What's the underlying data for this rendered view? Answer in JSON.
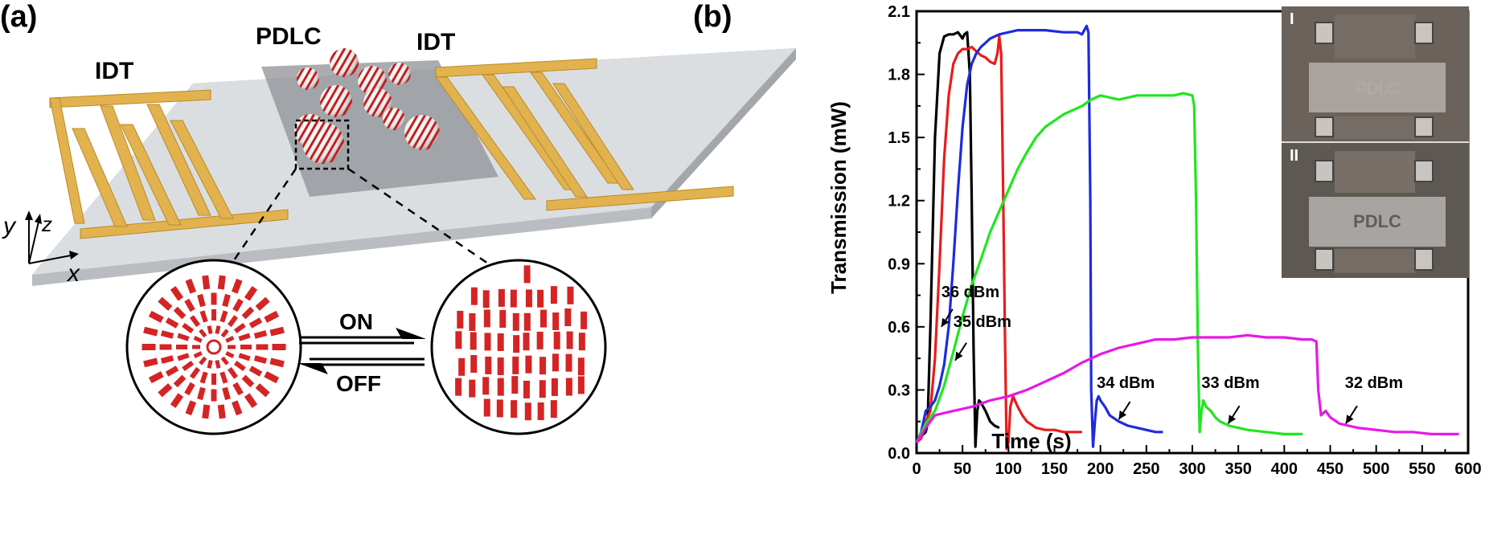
{
  "panel_a": {
    "label": "(a)",
    "idt_left": "IDT",
    "idt_right": "IDT",
    "pdlc": "PDLC",
    "axis_y": "y",
    "axis_z": "z",
    "axis_x": "x",
    "arrow_on": "ON",
    "arrow_off": "OFF",
    "colors": {
      "electrode": "#e2b24f",
      "substrate": "#dfe2e5",
      "droplet_red": "#d42424"
    }
  },
  "panel_b": {
    "label": "(b)",
    "inset_label_top": "I",
    "inset_label_bottom": "II",
    "inset_device_text": "PDLC"
  },
  "chart_data": {
    "type": "line",
    "title": "",
    "xlabel": "Time (s)",
    "ylabel": "Transmission (mW)",
    "xlim": [
      0,
      600
    ],
    "ylim": [
      0,
      2.1
    ],
    "xticks": [
      "0",
      "50",
      "100",
      "150",
      "200",
      "250",
      "300",
      "350",
      "400",
      "450",
      "500",
      "550",
      "600"
    ],
    "yticks": [
      "0.0",
      "0.3",
      "0.6",
      "0.9",
      "1.2",
      "1.5",
      "1.8",
      "2.1"
    ],
    "annotations": [
      {
        "text": "36 dBm",
        "x": 27,
        "y": 0.74,
        "arrow_to": [
          27,
          0.6
        ]
      },
      {
        "text": "35 dBm",
        "x": 40,
        "y": 0.6,
        "arrow_to": [
          42,
          0.44
        ]
      },
      {
        "text": "34 dBm",
        "x": 196,
        "y": 0.31,
        "arrow_to": [
          220,
          0.16
        ]
      },
      {
        "text": "33 dBm",
        "x": 310,
        "y": 0.31,
        "arrow_to": [
          339,
          0.14
        ]
      },
      {
        "text": "32 dBm",
        "x": 466,
        "y": 0.31,
        "arrow_to": [
          467,
          0.14
        ]
      }
    ],
    "series": [
      {
        "name": "36 dBm",
        "color": "#000000",
        "x": [
          0,
          5,
          10,
          12,
          15,
          20,
          25,
          30,
          35,
          40,
          45,
          50,
          52,
          55,
          58,
          60,
          62,
          64,
          66,
          68,
          70,
          75,
          80,
          85,
          90
        ],
        "y": [
          0.07,
          0.08,
          0.1,
          0.14,
          0.6,
          1.5,
          1.9,
          1.98,
          1.99,
          1.99,
          2.0,
          1.97,
          1.99,
          2.0,
          1.8,
          1.2,
          0.5,
          0.03,
          0.2,
          0.25,
          0.24,
          0.2,
          0.15,
          0.13,
          0.12
        ]
      },
      {
        "name": "35 dBm",
        "color": "#e81c1c",
        "x": [
          0,
          5,
          10,
          15,
          20,
          25,
          30,
          35,
          40,
          45,
          50,
          55,
          60,
          65,
          70,
          75,
          80,
          85,
          88,
          90,
          92,
          94,
          96,
          98,
          100,
          102,
          105,
          110,
          115,
          120,
          130,
          140,
          150,
          160,
          170,
          180
        ],
        "y": [
          0.05,
          0.07,
          0.15,
          0.2,
          0.45,
          0.9,
          1.4,
          1.7,
          1.85,
          1.9,
          1.92,
          1.92,
          1.93,
          1.91,
          1.89,
          1.88,
          1.86,
          1.85,
          1.9,
          1.98,
          1.9,
          1.3,
          0.6,
          0.02,
          0.05,
          0.22,
          0.27,
          0.22,
          0.18,
          0.15,
          0.12,
          0.11,
          0.11,
          0.1,
          0.1,
          0.1
        ]
      },
      {
        "name": "34 dBm",
        "color": "#1d2bdc",
        "x": [
          0,
          5,
          10,
          15,
          20,
          25,
          30,
          35,
          40,
          45,
          50,
          55,
          60,
          65,
          70,
          75,
          80,
          90,
          100,
          110,
          120,
          140,
          160,
          170,
          175,
          180,
          185,
          187,
          189,
          190,
          192,
          194,
          196,
          198,
          200,
          205,
          210,
          220,
          230,
          240,
          250,
          260,
          268
        ],
        "y": [
          0.05,
          0.1,
          0.2,
          0.22,
          0.25,
          0.32,
          0.42,
          0.6,
          0.9,
          1.25,
          1.55,
          1.75,
          1.85,
          1.9,
          1.93,
          1.95,
          1.97,
          1.99,
          2.0,
          2.01,
          2.01,
          2.01,
          2.0,
          2.0,
          2.0,
          1.99,
          2.03,
          2.0,
          1.2,
          0.3,
          0.03,
          0.15,
          0.25,
          0.27,
          0.25,
          0.22,
          0.18,
          0.15,
          0.13,
          0.12,
          0.11,
          0.1,
          0.1
        ]
      },
      {
        "name": "33 dBm",
        "color": "#1fe61f",
        "x": [
          0,
          10,
          20,
          30,
          40,
          50,
          60,
          70,
          80,
          90,
          100,
          110,
          120,
          130,
          140,
          150,
          160,
          170,
          180,
          190,
          200,
          210,
          220,
          230,
          240,
          250,
          260,
          270,
          280,
          290,
          300,
          302,
          304,
          306,
          308,
          310,
          312,
          315,
          320,
          325,
          330,
          335,
          340,
          350,
          360,
          380,
          400,
          420
        ],
        "y": [
          0.05,
          0.14,
          0.2,
          0.32,
          0.48,
          0.65,
          0.8,
          0.92,
          1.05,
          1.15,
          1.25,
          1.35,
          1.43,
          1.5,
          1.55,
          1.58,
          1.61,
          1.63,
          1.65,
          1.68,
          1.7,
          1.69,
          1.68,
          1.69,
          1.7,
          1.7,
          1.7,
          1.7,
          1.7,
          1.71,
          1.7,
          1.65,
          1.2,
          0.5,
          0.1,
          0.2,
          0.25,
          0.22,
          0.2,
          0.17,
          0.15,
          0.14,
          0.13,
          0.12,
          0.11,
          0.1,
          0.09,
          0.09
        ]
      },
      {
        "name": "32 dBm",
        "color": "#e619e6",
        "x": [
          0,
          10,
          20,
          40,
          60,
          80,
          100,
          120,
          140,
          160,
          180,
          200,
          220,
          240,
          260,
          280,
          300,
          320,
          340,
          360,
          380,
          400,
          420,
          430,
          435,
          437,
          440,
          445,
          450,
          460,
          470,
          480,
          500,
          520,
          540,
          560,
          580,
          590
        ],
        "y": [
          0.05,
          0.12,
          0.18,
          0.2,
          0.22,
          0.25,
          0.27,
          0.3,
          0.34,
          0.38,
          0.43,
          0.47,
          0.5,
          0.52,
          0.54,
          0.54,
          0.55,
          0.55,
          0.55,
          0.56,
          0.55,
          0.55,
          0.54,
          0.54,
          0.53,
          0.3,
          0.18,
          0.2,
          0.17,
          0.14,
          0.13,
          0.12,
          0.11,
          0.1,
          0.1,
          0.09,
          0.09,
          0.09
        ]
      }
    ]
  }
}
